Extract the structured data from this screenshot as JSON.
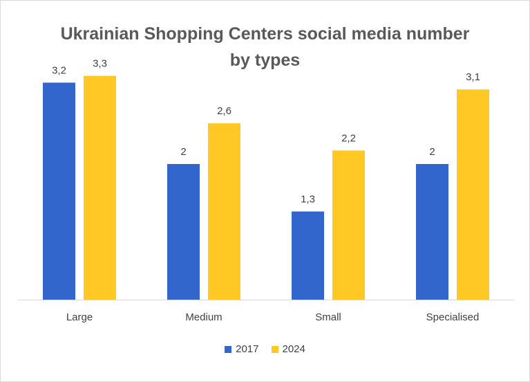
{
  "chart_data": {
    "type": "bar",
    "title_line1": "Ukrainian Shopping Centers social media number",
    "title_line2": "by types",
    "categories": [
      "Large",
      "Medium",
      "Small",
      "Specialised"
    ],
    "series": [
      {
        "name": "2017",
        "color": "#3366cc",
        "values": [
          3.2,
          2,
          1.3,
          2
        ],
        "labels": [
          "3,2",
          "2",
          "1,3",
          "2"
        ]
      },
      {
        "name": "2024",
        "color": "#ffc825",
        "values": [
          3.3,
          2.6,
          2.2,
          3.1
        ],
        "labels": [
          "3,3",
          "2,6",
          "2,2",
          "3,1"
        ]
      }
    ],
    "ylim": [
      0,
      3.5
    ],
    "gridlines": false,
    "legend_position": "bottom"
  }
}
